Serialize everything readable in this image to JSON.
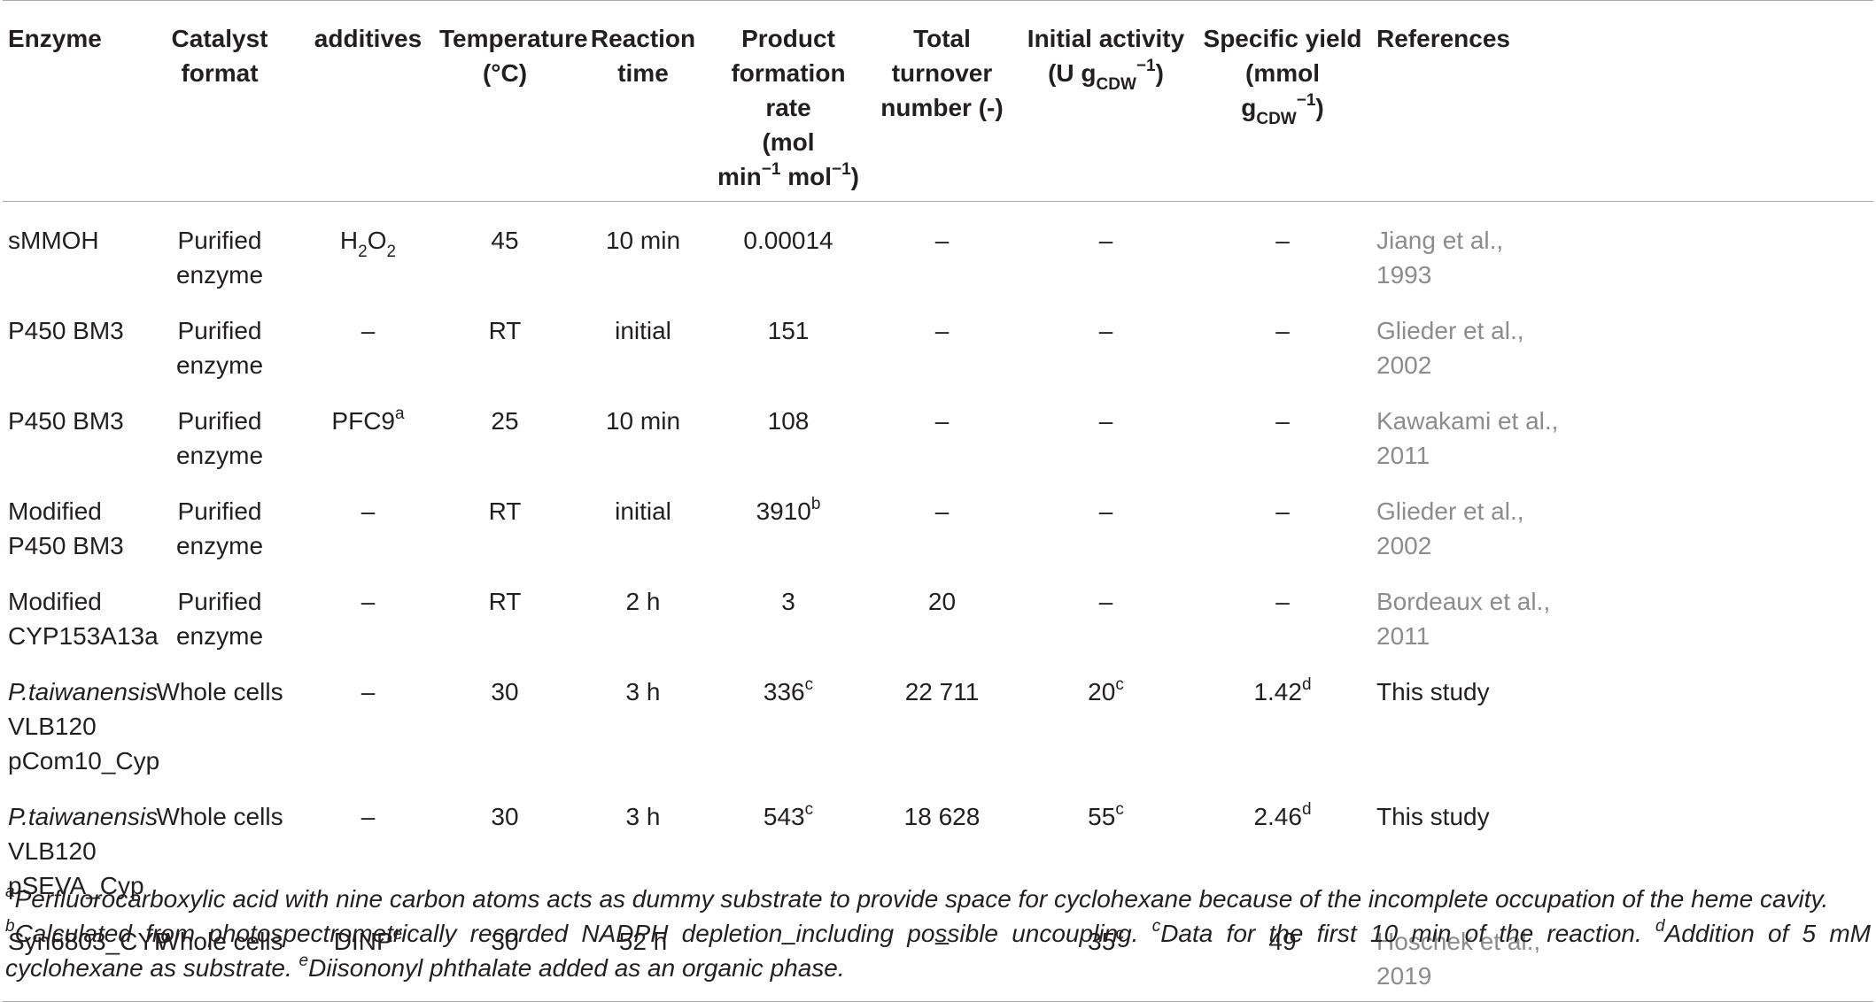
{
  "header": {
    "enzyme": "Enzyme",
    "catalyst_format": "Catalyst format",
    "additives": "additives",
    "temperature": "Temperature (°C)",
    "reaction_time": "Reaction time",
    "product_formation_rate": "Product formation rate (mol min⁻¹ mol⁻¹)",
    "total_turnover_number": "Total turnover number (-)",
    "initial_activity": "Initial activity (U gCDW⁻¹)",
    "specific_yield": "Specific yield (mmol gCDW⁻¹)",
    "references": "References"
  },
  "rows": [
    {
      "enzyme": "sMMOH",
      "format": "Purified enzyme",
      "additives": "H2O2",
      "temp": "45",
      "time": "10 min",
      "rate": "0.00014",
      "ttn": "–",
      "activity": "–",
      "yield": "–",
      "ref": "Jiang et al., 1993"
    },
    {
      "enzyme": "P450 BM3",
      "format": "Purified enzyme",
      "additives": "–",
      "temp": "RT",
      "time": "initial",
      "rate": "151",
      "ttn": "–",
      "activity": "–",
      "yield": "–",
      "ref": "Glieder et al., 2002"
    },
    {
      "enzyme": "P450 BM3",
      "format": "Purified enzyme",
      "additives": "PFC9",
      "additives_note": "a",
      "temp": "25",
      "time": "10 min",
      "rate": "108",
      "ttn": "–",
      "activity": "–",
      "yield": "–",
      "ref": "Kawakami et al., 2011"
    },
    {
      "enzyme": "Modified P450 BM3",
      "format": "Purified enzyme",
      "additives": "–",
      "temp": "RT",
      "time": "initial",
      "rate": "3910",
      "rate_note": "b",
      "ttn": "–",
      "activity": "–",
      "yield": "–",
      "ref": "Glieder et al., 2002"
    },
    {
      "enzyme": "Modified CYP153A13a",
      "format": "Purified enzyme",
      "additives": "–",
      "temp": "RT",
      "time": "2 h",
      "rate": "3",
      "ttn": "20",
      "activity": "–",
      "yield": "–",
      "ref": "Bordeaux et al., 2011"
    },
    {
      "enzyme_italic": "P.taiwanensis",
      "enzyme": "VLB120 pCom10_Cyp",
      "format": "Whole cells",
      "additives": "–",
      "temp": "30",
      "time": "3 h",
      "rate": "336",
      "rate_note": "c",
      "ttn": "22 711",
      "activity": "20",
      "activity_note": "c",
      "yield": "1.42",
      "yield_note": "d",
      "ref": "This study"
    },
    {
      "enzyme_italic": "P.taiwanensis",
      "enzyme": "VLB120 pSEVA_Cyp",
      "format": "Whole cells",
      "additives": "–",
      "temp": "30",
      "time": "3 h",
      "rate": "543",
      "rate_note": "c",
      "ttn": "18 628",
      "activity": "55",
      "activity_note": "c",
      "yield": "2.46",
      "yield_note": "d",
      "ref": "This study"
    },
    {
      "enzyme": "Syn6803_CYP",
      "format": "Whole cells",
      "additives": "DINP",
      "additives_note": "e",
      "temp": "30",
      "time": "52 h",
      "rate": "–",
      "ttn": "–",
      "activity": "35",
      "activity_note": "c",
      "yield": "49",
      "ref": "Hoschek et al., 2019"
    }
  ],
  "footnotes": [
    {
      "mark": "a",
      "text": "Perfluorocarboxylic acid with nine carbon atoms acts as dummy substrate to provide space for cyclohexane because of the incomplete occupation of the heme cavity."
    },
    {
      "mark": "b",
      "text": "Calculated from photospectrometrically recorded NADPH depletion including possible uncoupling."
    },
    {
      "mark": "c",
      "text": "Data for the first 10 min of the reaction."
    },
    {
      "mark": "d",
      "text": "Addition of 5 mM cyclohexane as substrate."
    },
    {
      "mark": "e",
      "text": "Diisononyl phthalate added as an organic phase."
    }
  ],
  "colors": {
    "text": "#231f20",
    "reference_link": "#8c8c8c",
    "rule": "#a9a9a9"
  }
}
